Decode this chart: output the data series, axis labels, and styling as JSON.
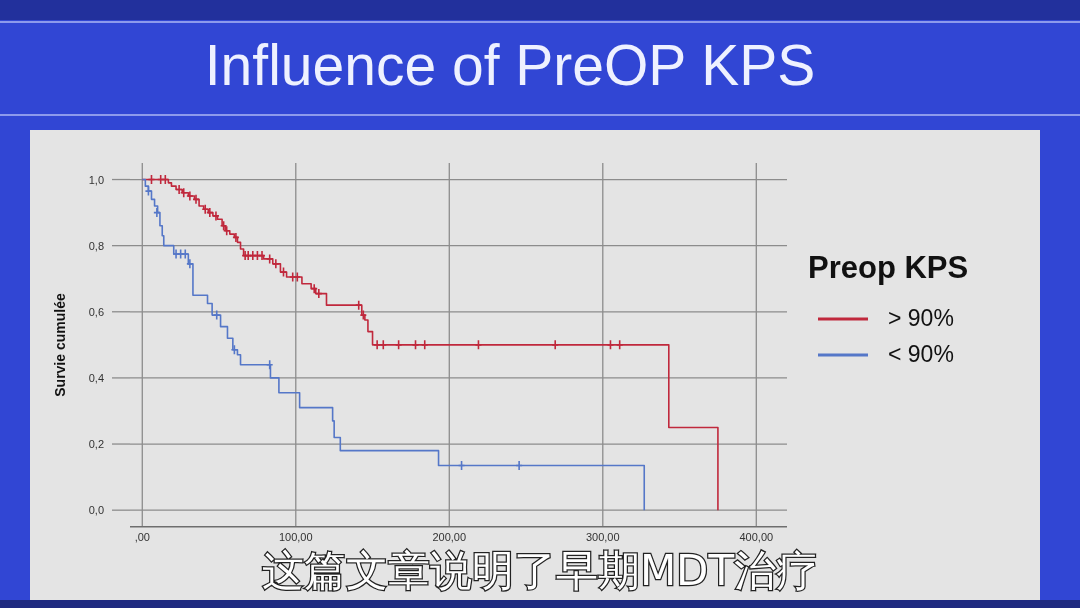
{
  "chart_data": {
    "type": "step",
    "title": "Influence of PreOP KPS",
    "ylabel": "Survie cumulée",
    "legend_title": "Preop KPS",
    "annotations": [
      "这篇文章说明了早期MDT治疗"
    ],
    "xlim": [
      -8,
      420
    ],
    "ylim": [
      -0.05,
      1.05
    ],
    "xticks": [
      {
        "value": 0,
        "label": ",00"
      },
      {
        "value": 100,
        "label": "100,00"
      },
      {
        "value": 200,
        "label": "200,00"
      },
      {
        "value": 300,
        "label": "300,00"
      },
      {
        "value": 400,
        "label": "400,00"
      }
    ],
    "yticks": [
      {
        "value": 0,
        "label": "0,0"
      },
      {
        "value": 0.2,
        "label": "0,2"
      },
      {
        "value": 0.4,
        "label": "0,4"
      },
      {
        "value": 0.6,
        "label": "0,6"
      },
      {
        "value": 0.8,
        "label": "0,8"
      },
      {
        "value": 1,
        "label": "1,0"
      }
    ],
    "grid": true,
    "legend": "right",
    "series": [
      {
        "name": "> 90%",
        "color": "#c0283c",
        "x": [
          0,
          17,
          19,
          22,
          26,
          30,
          34,
          37,
          40,
          43,
          46,
          49,
          52,
          54,
          57,
          60,
          62,
          64,
          66,
          79,
          85,
          90,
          94,
          104,
          110,
          113,
          120,
          143,
          145,
          147,
          150,
          343,
          375
        ],
        "values": [
          1.0,
          0.99,
          0.98,
          0.97,
          0.96,
          0.95,
          0.94,
          0.92,
          0.91,
          0.9,
          0.89,
          0.88,
          0.86,
          0.845,
          0.835,
          0.825,
          0.81,
          0.79,
          0.77,
          0.76,
          0.745,
          0.72,
          0.705,
          0.685,
          0.67,
          0.655,
          0.62,
          0.59,
          0.575,
          0.54,
          0.5,
          0.25,
          0.0
        ]
      },
      {
        "name": "< 90%",
        "color": "#5577c8",
        "x": [
          0,
          2,
          4,
          6,
          8,
          10,
          11.5,
          13,
          14,
          20.5,
          30,
          33,
          42.5,
          45.5,
          51,
          55.5,
          59,
          62,
          64,
          83.5,
          89,
          102.5,
          124,
          125,
          129,
          193,
          327
        ],
        "values": [
          1.0,
          0.98,
          0.965,
          0.94,
          0.92,
          0.9,
          0.86,
          0.83,
          0.8,
          0.775,
          0.745,
          0.65,
          0.625,
          0.59,
          0.555,
          0.52,
          0.485,
          0.47,
          0.44,
          0.4,
          0.355,
          0.31,
          0.27,
          0.22,
          0.18,
          0.135,
          0.0
        ]
      },
      {
        "type": "scatter",
        "color": "#c0283c",
        "marker": "cross",
        "x": [
          6,
          12,
          15,
          24,
          27,
          31,
          35,
          41,
          44,
          48,
          53,
          55,
          61,
          67,
          69,
          72,
          75,
          78,
          83,
          87,
          92,
          98,
          101,
          112,
          115,
          141,
          144,
          153,
          157,
          167,
          178,
          184,
          219,
          269,
          305,
          311
        ],
        "values": [
          1.0,
          1.0,
          1.0,
          0.97,
          0.96,
          0.95,
          0.94,
          0.91,
          0.9,
          0.89,
          0.86,
          0.845,
          0.825,
          0.77,
          0.77,
          0.77,
          0.77,
          0.77,
          0.76,
          0.745,
          0.72,
          0.705,
          0.705,
          0.67,
          0.655,
          0.62,
          0.59,
          0.5,
          0.5,
          0.5,
          0.5,
          0.5,
          0.5,
          0.5,
          0.5,
          0.5
        ]
      },
      {
        "type": "scatter",
        "color": "#5577c8",
        "marker": "cross",
        "x": [
          4,
          9.5,
          22,
          25,
          28,
          31,
          48.5,
          60,
          83,
          208,
          245.5
        ],
        "values": [
          0.965,
          0.9,
          0.775,
          0.775,
          0.775,
          0.745,
          0.59,
          0.485,
          0.44,
          0.135,
          0.135
        ]
      }
    ]
  }
}
